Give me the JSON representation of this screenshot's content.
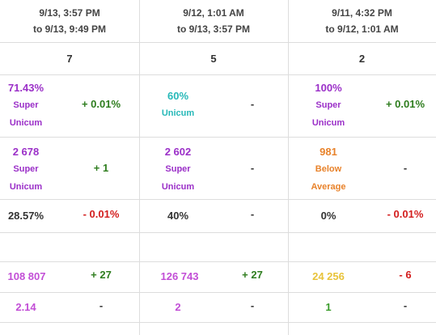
{
  "colors": {
    "super_unicum": "#9b30c8",
    "unicum": "#26b8b8",
    "below_average": "#e8822a",
    "pink": "#c24ed6",
    "yellow": "#e8c33a",
    "green": "#3a9c2a",
    "positive": "#2e7d1e",
    "negative": "#d31d1d"
  },
  "periods": [
    {
      "from": "9/13, 3:57 PM",
      "to": "to 9/13, 9:49 PM"
    },
    {
      "from": "9/12, 1:01 AM",
      "to": "to 9/13, 3:57 PM"
    },
    {
      "from": "9/11, 4:32 PM",
      "to": "to 9/12, 1:01 AM"
    }
  ],
  "battles": [
    "7",
    "5",
    "2"
  ],
  "winrate": [
    {
      "value": "71.43%",
      "rating1": "Super",
      "rating2": "Unicum",
      "delta": "+ 0.01%"
    },
    {
      "value": "60%",
      "rating1": "Unicum",
      "rating2": "",
      "delta": "-"
    },
    {
      "value": "100%",
      "rating1": "Super",
      "rating2": "Unicum",
      "delta": "+ 0.01%"
    }
  ],
  "wn8": [
    {
      "value": "2 678",
      "rating1": "Super",
      "rating2": "Unicum",
      "delta": "+ 1"
    },
    {
      "value": "2 602",
      "rating1": "Super",
      "rating2": "Unicum",
      "delta": "-"
    },
    {
      "value": "981",
      "rating1": "Below",
      "rating2": "Average",
      "delta": "-"
    }
  ],
  "survival": [
    {
      "value": "28.57%",
      "delta": "- 0.01%"
    },
    {
      "value": "40%",
      "delta": "-"
    },
    {
      "value": "0%",
      "delta": "- 0.01%"
    }
  ],
  "damage": [
    {
      "value": "108 807",
      "delta": "+ 27"
    },
    {
      "value": "126 743",
      "delta": "+ 27"
    },
    {
      "value": "24 256",
      "delta": "- 6"
    }
  ],
  "kd": [
    {
      "value": "2.14",
      "delta": "-"
    },
    {
      "value": "2",
      "delta": "-"
    },
    {
      "value": "1",
      "delta": "-"
    }
  ]
}
